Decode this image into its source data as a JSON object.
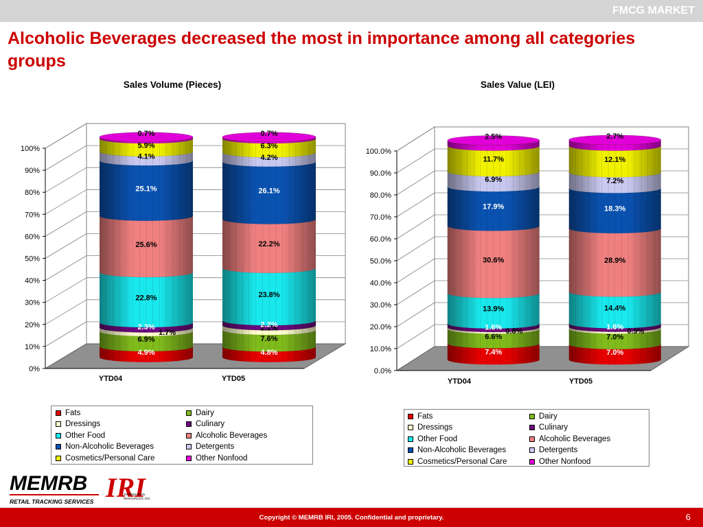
{
  "header": {
    "tag": "FMCG MARKET"
  },
  "slide": {
    "title": "Alcoholic Beverages decreased the most in importance among all categories groups"
  },
  "categories_colors": {
    "Fats": "#e60000",
    "Dairy": "#80bb1c",
    "Dressings": "#ffffcc",
    "Culinary": "#6a0a80",
    "Other Food": "#19e8ec",
    "Alcoholic Beverages": "#f08080",
    "Non-Alcoholic Beverages": "#0a52b0",
    "Detergents": "#c8c8f0",
    "Cosmetics/Personal Care": "#f0f000",
    "Other Nonfood": "#e000d8"
  },
  "chart_data": [
    {
      "type": "bar",
      "stacked": true,
      "title": "Sales Volume (Pieces)",
      "categories": [
        "YTD04",
        "YTD05"
      ],
      "ylim": [
        0,
        100
      ],
      "yticks": [
        "0%",
        "10%",
        "20%",
        "30%",
        "40%",
        "50%",
        "60%",
        "70%",
        "80%",
        "90%",
        "100%"
      ],
      "series": [
        {
          "name": "Fats",
          "values": [
            4.9,
            4.8
          ],
          "labels": [
            "4.9%",
            "4.8%"
          ]
        },
        {
          "name": "Dairy",
          "values": [
            6.9,
            7.6
          ],
          "labels": [
            "6.9%",
            "7.6%"
          ]
        },
        {
          "name": "Dressings",
          "values": [
            1.7,
            2.1
          ],
          "labels": [
            "1.7%",
            "2.1%"
          ]
        },
        {
          "name": "Culinary",
          "values": [
            2.3,
            2.2
          ],
          "labels": [
            "2.3%",
            "2.2%"
          ]
        },
        {
          "name": "Other Food",
          "values": [
            22.8,
            23.8
          ],
          "labels": [
            "22.8%",
            "23.8%"
          ]
        },
        {
          "name": "Alcoholic Beverages",
          "values": [
            25.6,
            22.2
          ],
          "labels": [
            "25.6%",
            "22.2%"
          ]
        },
        {
          "name": "Non-Alcoholic Beverages",
          "values": [
            25.1,
            26.1
          ],
          "labels": [
            "25.1%",
            "26.1%"
          ]
        },
        {
          "name": "Detergents",
          "values": [
            4.1,
            4.2
          ],
          "labels": [
            "4.1%",
            "4.2%"
          ]
        },
        {
          "name": "Cosmetics/Personal Care",
          "values": [
            5.9,
            6.3
          ],
          "labels": [
            "5.9%",
            "6.3%"
          ]
        },
        {
          "name": "Other Nonfood",
          "values": [
            0.7,
            0.7
          ],
          "labels": [
            "0.7%",
            "0.7%"
          ]
        }
      ],
      "legend_position": "bottom"
    },
    {
      "type": "bar",
      "stacked": true,
      "title": "Sales Value (LEI)",
      "categories": [
        "YTD04",
        "YTD05"
      ],
      "ylim": [
        0,
        100
      ],
      "yticks": [
        "0.0%",
        "10.0%",
        "20.0%",
        "30.0%",
        "40.0%",
        "50.0%",
        "60.0%",
        "70.0%",
        "80.0%",
        "90.0%",
        "100.0%"
      ],
      "series": [
        {
          "name": "Fats",
          "values": [
            7.4,
            7.0
          ],
          "labels": [
            "7.4%",
            "7.0%"
          ]
        },
        {
          "name": "Dairy",
          "values": [
            6.6,
            7.0
          ],
          "labels": [
            "6.6%",
            "7.0%"
          ]
        },
        {
          "name": "Dressings",
          "values": [
            0.8,
            0.9
          ],
          "labels": [
            "0.8%",
            "0.9%"
          ]
        },
        {
          "name": "Culinary",
          "values": [
            1.6,
            1.6
          ],
          "labels": [
            "1.6%",
            "1.6%"
          ]
        },
        {
          "name": "Other Food",
          "values": [
            13.9,
            14.4
          ],
          "labels": [
            "13.9%",
            "14.4%"
          ]
        },
        {
          "name": "Alcoholic Beverages",
          "values": [
            30.6,
            28.9
          ],
          "labels": [
            "30.6%",
            "28.9%"
          ]
        },
        {
          "name": "Non-Alcoholic Beverages",
          "values": [
            17.9,
            18.3
          ],
          "labels": [
            "17.9%",
            "18.3%"
          ]
        },
        {
          "name": "Detergents",
          "values": [
            6.9,
            7.2
          ],
          "labels": [
            "6.9%",
            "7.2%"
          ]
        },
        {
          "name": "Cosmetics/Personal Care",
          "values": [
            11.7,
            12.1
          ],
          "labels": [
            "11.7%",
            "12.1%"
          ]
        },
        {
          "name": "Other Nonfood",
          "values": [
            2.5,
            2.7
          ],
          "labels": [
            "2.5%",
            "2.7%"
          ]
        }
      ],
      "legend_position": "bottom"
    }
  ],
  "logo": {
    "memrb": "MEMRB",
    "memrb_sub": "RETAIL TRACKING SERVICES",
    "iri": "IRI",
    "iri_sub1": "INFORMATION",
    "iri_sub2": "RESOURCES, INC."
  },
  "footer": {
    "copyright": "Copyright © MEMRB IRI, 2005. Confidential and proprietary.",
    "page_number": "6"
  }
}
